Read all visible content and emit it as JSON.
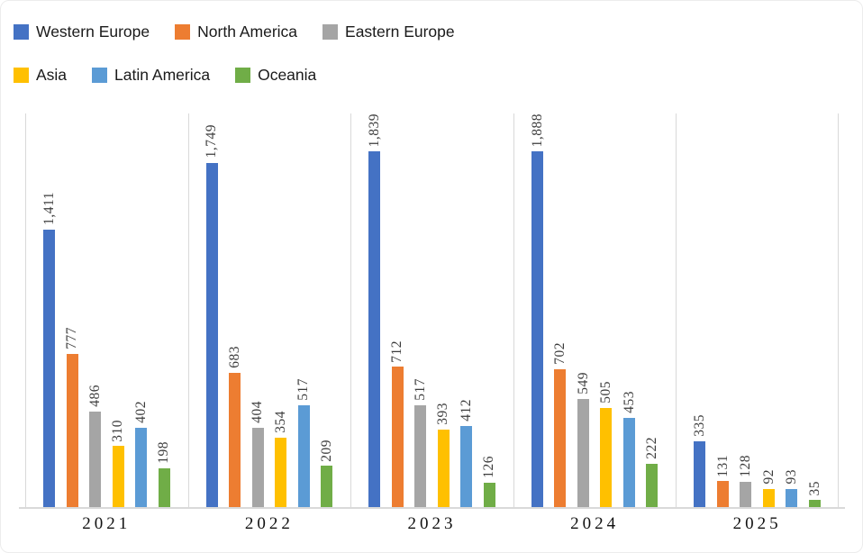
{
  "chart_data": {
    "type": "bar",
    "title": "",
    "xlabel": "",
    "ylabel": "",
    "categories": [
      "2021",
      "2022",
      "2023",
      "2024",
      "2025"
    ],
    "series": [
      {
        "name": "Western Europe",
        "color": "#4472C4",
        "values": [
          1411,
          1749,
          1839,
          1888,
          335
        ],
        "labels": [
          "1,411",
          "1,749",
          "1,839",
          "1,888",
          "335"
        ]
      },
      {
        "name": "North America",
        "color": "#ED7D31",
        "values": [
          777,
          683,
          712,
          702,
          131
        ],
        "labels": [
          "777",
          "683",
          "712",
          "702",
          "131"
        ]
      },
      {
        "name": "Eastern Europe",
        "color": "#A5A5A5",
        "values": [
          486,
          404,
          517,
          549,
          128
        ],
        "labels": [
          "486",
          "404",
          "517",
          "549",
          "128"
        ]
      },
      {
        "name": "Asia",
        "color": "#FFC000",
        "values": [
          310,
          354,
          393,
          505,
          92
        ],
        "labels": [
          "310",
          "354",
          "393",
          "505",
          "92"
        ]
      },
      {
        "name": "Latin America",
        "color": "#5B9BD5",
        "values": [
          402,
          517,
          412,
          453,
          93
        ],
        "labels": [
          "402",
          "517",
          "412",
          "453",
          "93"
        ]
      },
      {
        "name": "Oceania",
        "color": "#70AD47",
        "values": [
          198,
          209,
          126,
          222,
          35
        ],
        "labels": [
          "198",
          "209",
          "126",
          "222",
          "35"
        ]
      }
    ],
    "ylim": [
      0,
      2000
    ],
    "grid": "vertical-category-separators-only",
    "gridline_color": "#D9D9D9",
    "legend_position": "top-left",
    "legend_rows": 2,
    "data_labels": true,
    "data_label_rotation": "vertical-bottom-to-top",
    "data_label_format": "thousands-comma"
  }
}
